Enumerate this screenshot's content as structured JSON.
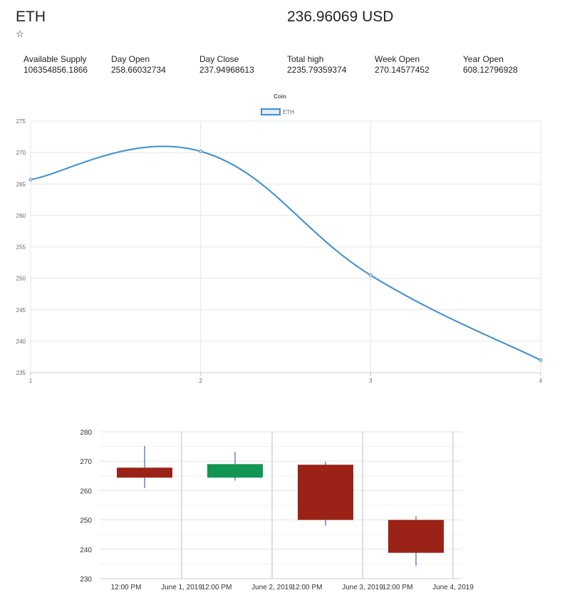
{
  "coin": {
    "symbol": "ETH",
    "favorite_icon": "star-outline-icon",
    "favorite_glyph": "☆",
    "price": "236.96069 USD"
  },
  "stats": [
    {
      "label": "Available Supply",
      "value": "106354856.1866"
    },
    {
      "label": "Day Open",
      "value": "258.66032734"
    },
    {
      "label": "Day Close",
      "value": "237.94968613"
    },
    {
      "label": "Total high",
      "value": "2235.79359374"
    },
    {
      "label": "Week Open",
      "value": "270.14577452"
    },
    {
      "label": "Year Open",
      "value": "608.12796928"
    }
  ],
  "chart_data": [
    {
      "type": "line",
      "title": "Coin",
      "legend_placement": "top-center",
      "grid": true,
      "x": [
        1,
        2,
        3,
        4
      ],
      "x_ticks": [
        "1",
        "2",
        "3",
        "4"
      ],
      "y_ticks": [
        "235",
        "240",
        "245",
        "250",
        "255",
        "260",
        "265",
        "270",
        "275"
      ],
      "ylim": [
        235,
        275
      ],
      "series": [
        {
          "name": "ETH",
          "values": [
            265.7,
            270.2,
            250.5,
            237.0
          ],
          "color": "#3e8ed0",
          "fill": "#e4ecf5"
        }
      ]
    },
    {
      "type": "candlestick",
      "grid": true,
      "ylim": [
        230,
        280
      ],
      "y_ticks": [
        "230",
        "240",
        "250",
        "260",
        "270",
        "280"
      ],
      "x_ticks": [
        "12:00 PM",
        "June 1, 2019",
        "12:00 PM",
        "June 2, 2019",
        "12:00 PM",
        "June 3, 2019",
        "12:00 PM",
        "June 4, 2019"
      ],
      "up_color": "#129452",
      "down_color": "#9b2216",
      "wick_color": "#3d63c6",
      "candles": [
        {
          "open": 267.8,
          "close": 264.4,
          "high": 275.2,
          "low": 260.8
        },
        {
          "open": 264.4,
          "close": 269.0,
          "high": 273.2,
          "low": 263.4
        },
        {
          "open": 268.8,
          "close": 250.0,
          "high": 269.8,
          "low": 248.0
        },
        {
          "open": 250.0,
          "close": 238.8,
          "high": 251.4,
          "low": 234.4
        }
      ]
    }
  ]
}
